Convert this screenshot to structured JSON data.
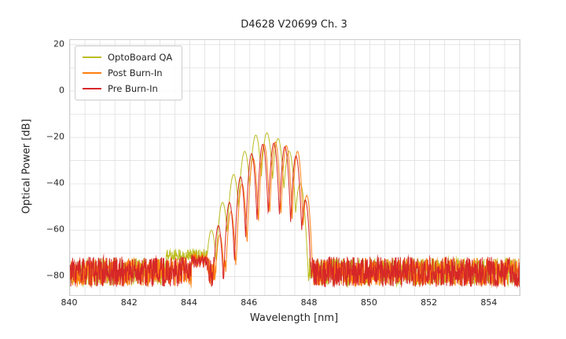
{
  "chart_data": {
    "type": "line",
    "title": "D4628 V20699 Ch. 3",
    "xlabel": "Wavelength [nm]",
    "ylabel": "Optical Power [dB]",
    "xlim": [
      840,
      855
    ],
    "ylim": [
      -88,
      22
    ],
    "xticks": [
      840,
      842,
      844,
      846,
      848,
      850,
      852,
      854
    ],
    "yticks": [
      20,
      0,
      -20,
      -40,
      -60,
      -80
    ],
    "grid": {
      "x_step": 0.5,
      "y_step": 10,
      "color": "#dcdcdc"
    },
    "legend_position": "upper-left",
    "mode_spacing_nm": 0.37,
    "noise_note": "broadband noise floor ~-78 dB across 840-855 nm; multimode VCSEL spectrum between ~844.7 and ~848 nm",
    "series": [
      {
        "name": "OptoBoard QA",
        "color": "#bcbd22",
        "noise_floor_db": -78,
        "noise_amp_db": 6,
        "seed": 11,
        "mode_k": 550,
        "shoulder": {
          "from": 843.2,
          "to": 844.75,
          "level_db": -70.5,
          "amp_db": 2.5
        },
        "modes": [
          [
            844.72,
            -60
          ],
          [
            845.09,
            -48
          ],
          [
            845.46,
            -36
          ],
          [
            845.83,
            -26
          ],
          [
            846.2,
            -19
          ],
          [
            846.57,
            -18
          ],
          [
            846.94,
            -20.5
          ],
          [
            847.31,
            -26
          ],
          [
            847.68,
            -40
          ]
        ]
      },
      {
        "name": "Post Burn-In",
        "color": "#ff7f0e",
        "noise_floor_db": -78,
        "noise_amp_db": 6,
        "seed": 22,
        "mode_k": 900,
        "shoulder": {
          "from": 844.05,
          "to": 844.6,
          "level_db": -73,
          "amp_db": 3
        },
        "modes": [
          [
            845.0,
            -62
          ],
          [
            845.37,
            -52
          ],
          [
            845.74,
            -40
          ],
          [
            846.11,
            -29
          ],
          [
            846.48,
            -23
          ],
          [
            846.85,
            -22
          ],
          [
            847.22,
            -23.5
          ],
          [
            847.59,
            -26
          ],
          [
            847.9,
            -45
          ]
        ]
      },
      {
        "name": "Pre Burn-In",
        "color": "#d62728",
        "noise_floor_db": -78,
        "noise_amp_db": 6.5,
        "seed": 33,
        "mode_k": 900,
        "shoulder": {
          "from": 844.05,
          "to": 844.55,
          "level_db": -73.5,
          "amp_db": 3
        },
        "modes": [
          [
            844.95,
            -58
          ],
          [
            845.32,
            -48
          ],
          [
            845.69,
            -37
          ],
          [
            846.06,
            -27
          ],
          [
            846.43,
            -23
          ],
          [
            846.8,
            -22.5
          ],
          [
            847.17,
            -24
          ],
          [
            847.54,
            -28
          ],
          [
            847.85,
            -47
          ]
        ]
      }
    ]
  }
}
